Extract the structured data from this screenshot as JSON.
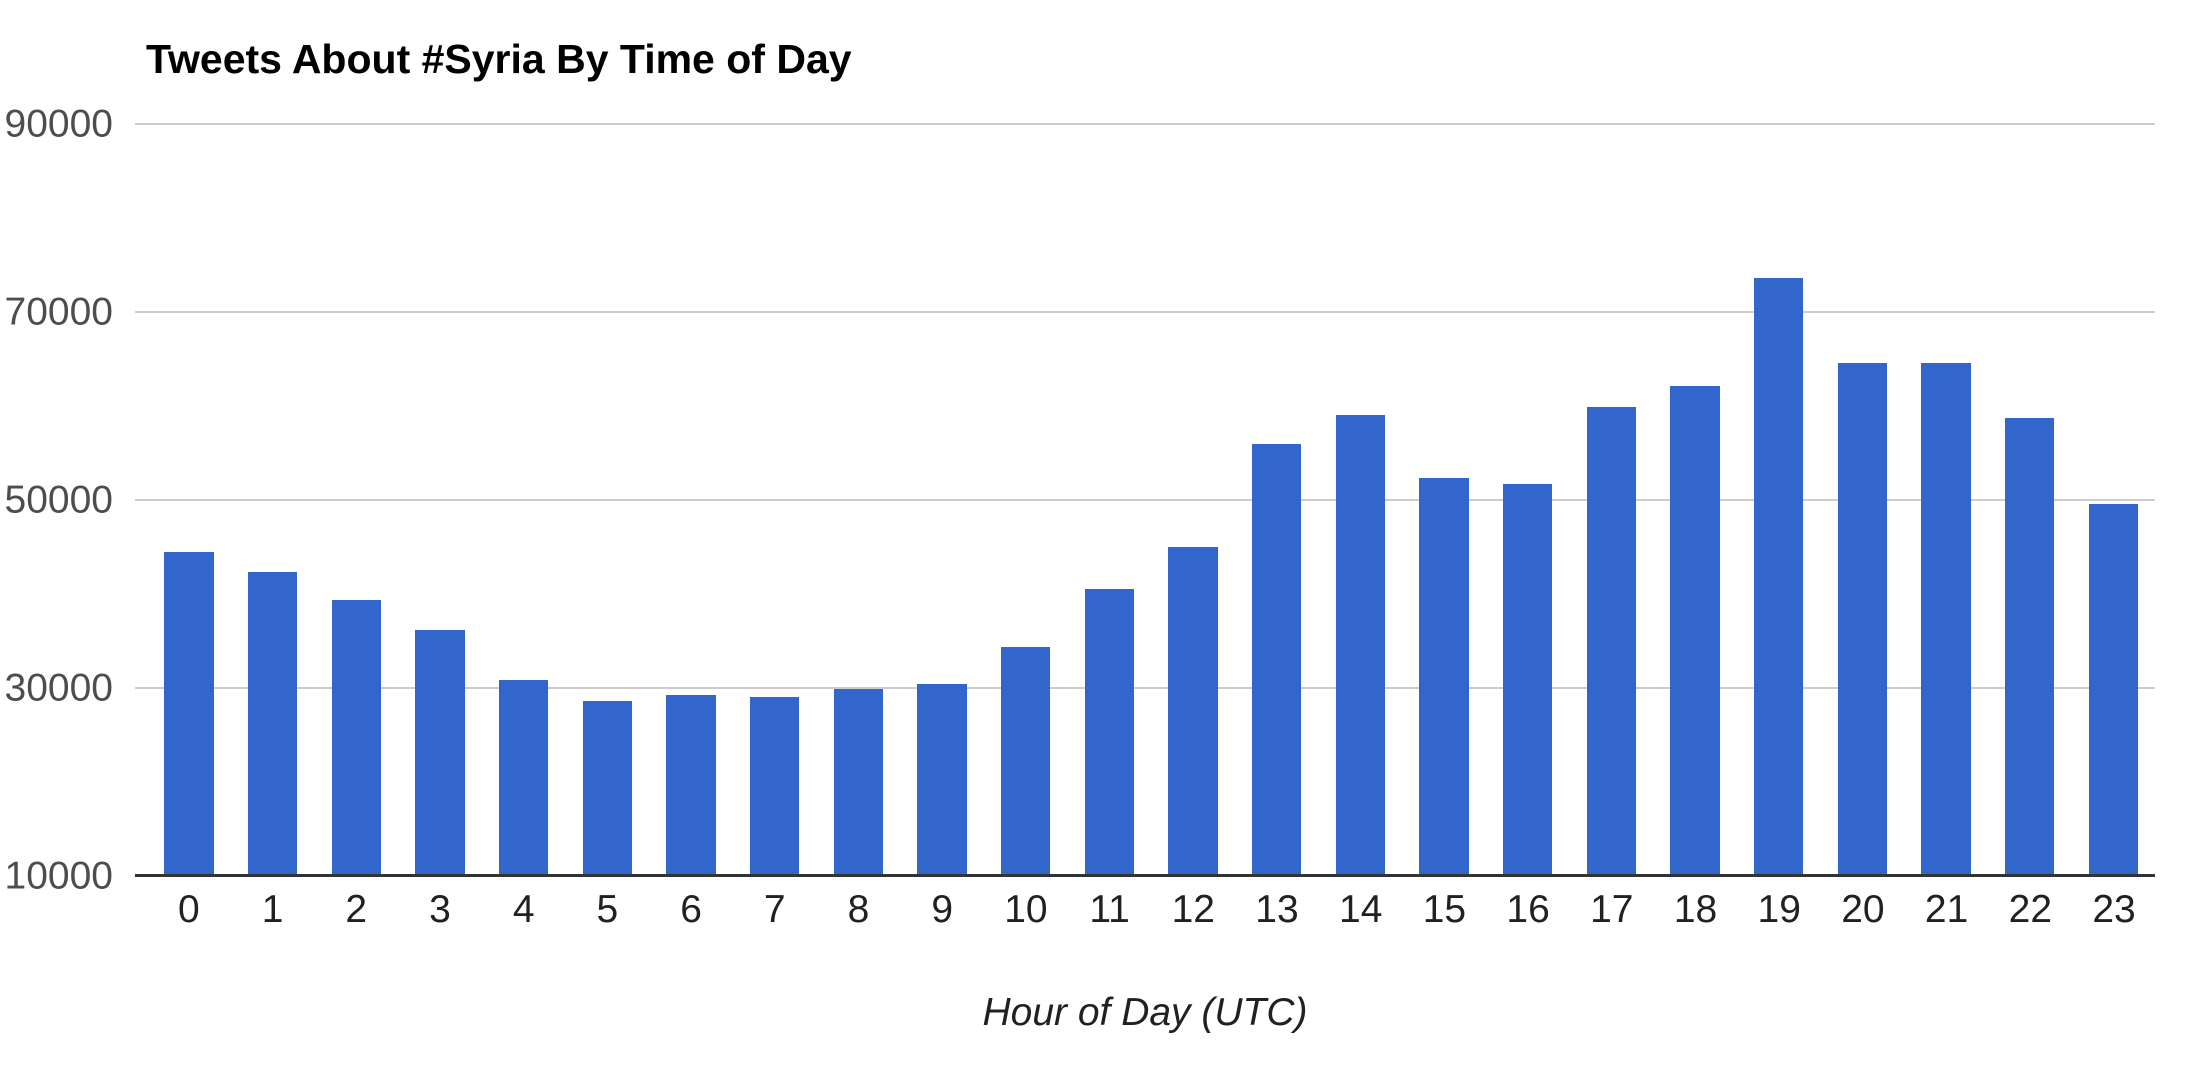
{
  "chart_data": {
    "type": "bar",
    "title": "Tweets About #Syria By Time of Day",
    "xlabel": "Hour of Day (UTC)",
    "ylabel": "",
    "categories": [
      "0",
      "1",
      "2",
      "3",
      "4",
      "5",
      "6",
      "7",
      "8",
      "9",
      "10",
      "11",
      "12",
      "13",
      "14",
      "15",
      "16",
      "17",
      "18",
      "19",
      "20",
      "21",
      "22",
      "23"
    ],
    "values": [
      44500,
      42300,
      39400,
      36200,
      30800,
      28600,
      29300,
      29000,
      29900,
      30400,
      34400,
      40500,
      45000,
      56000,
      59000,
      52300,
      51700,
      59900,
      62100,
      73600,
      64600,
      64600,
      58700,
      49600
    ],
    "y_ticks": [
      90000,
      70000,
      50000,
      30000,
      10000
    ],
    "ylim": [
      10000,
      90000
    ],
    "grid": true,
    "legend": "none",
    "colors": {
      "bar": "#3366cc",
      "gridline": "#cccccc",
      "axis_line": "#333333"
    }
  }
}
